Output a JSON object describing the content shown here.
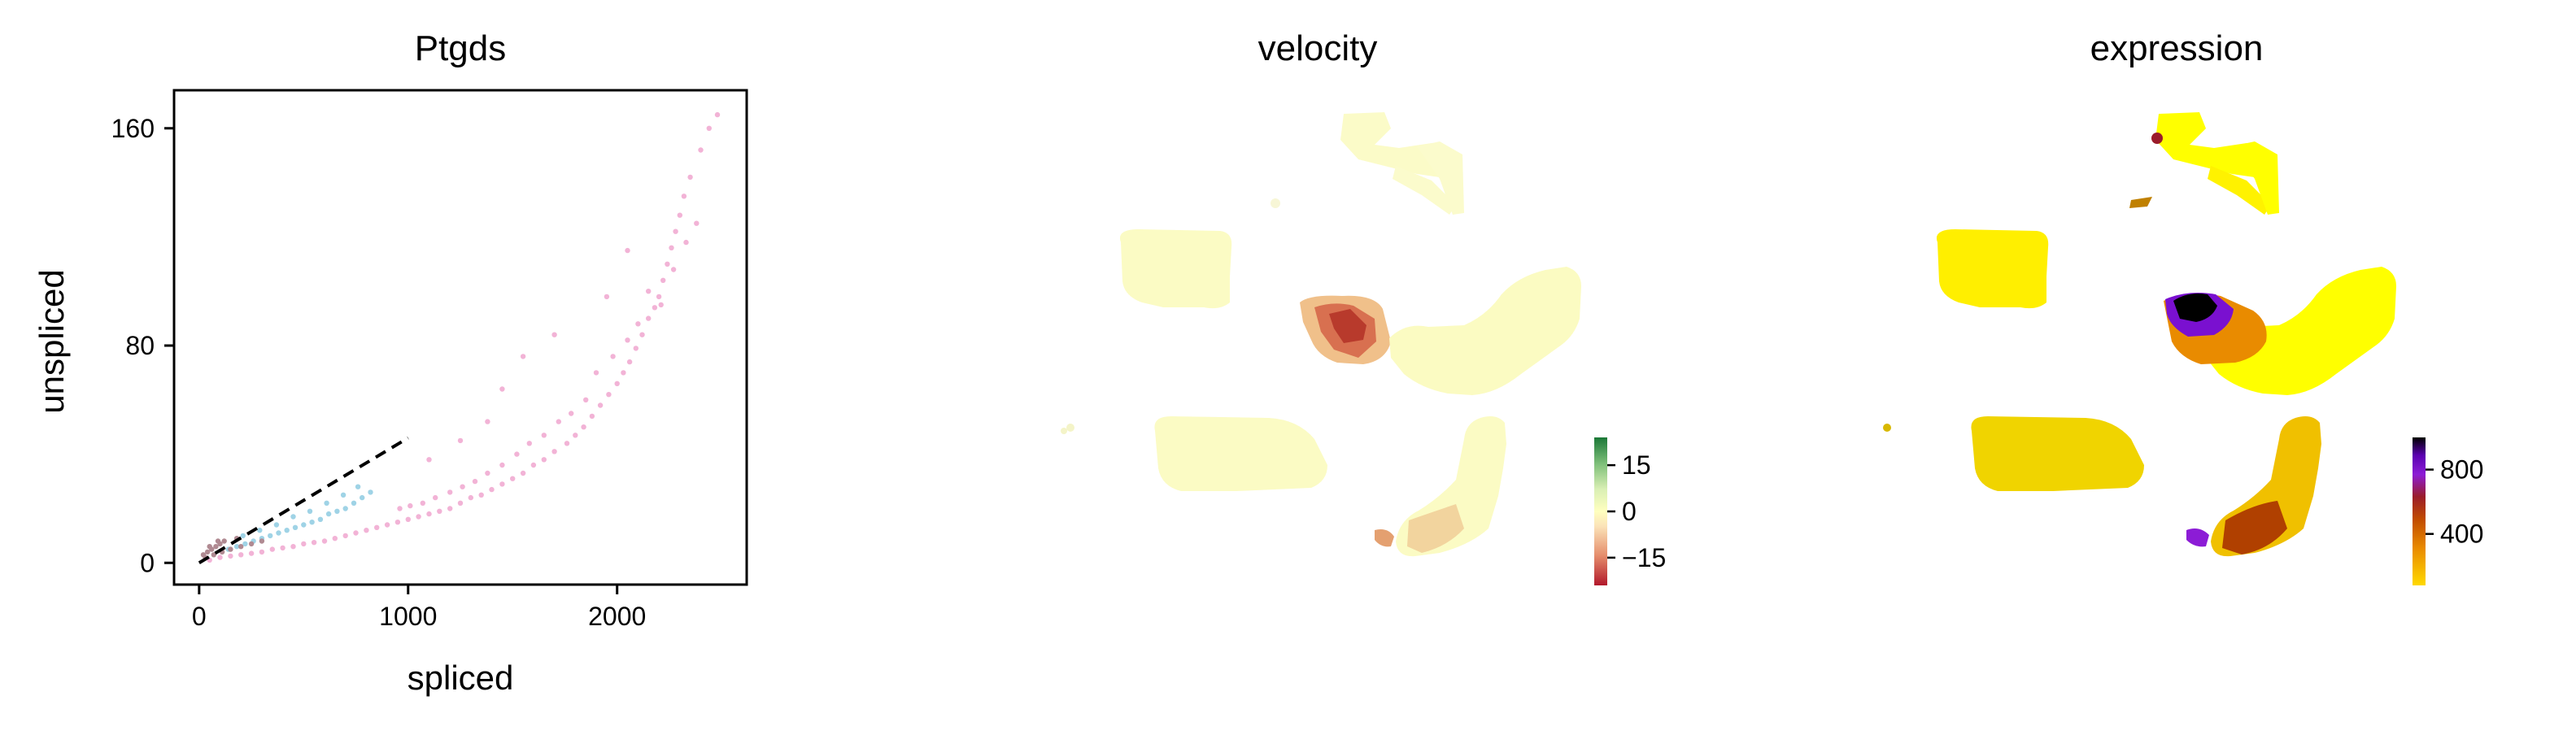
{
  "chart_data": [
    {
      "type": "scatter",
      "title": "Ptgds",
      "xlabel": "spliced",
      "ylabel": "unspliced",
      "xlim": [
        -120,
        2620
      ],
      "ylim": [
        -8,
        174
      ],
      "xticks": [
        "0",
        "1000",
        "2000"
      ],
      "yticks": [
        "0",
        "80",
        "160"
      ],
      "xtick_values": [
        0,
        1000,
        2000
      ],
      "ytick_values": [
        0,
        80,
        160
      ],
      "grid": false,
      "legend": "none",
      "point_colors": [
        "#f2b3d6",
        "#9fd3e6",
        "#b08a92",
        "#c8c8c8"
      ],
      "series": [
        {
          "values_note": "",
          "points": [
            [
              2480,
              165
            ],
            [
              2440,
              160
            ],
            [
              2400,
              152
            ],
            [
              2350,
              142
            ],
            [
              2320,
              135
            ],
            [
              2300,
              128
            ],
            [
              2280,
              122
            ],
            [
              2260,
              116
            ],
            [
              2240,
              110
            ],
            [
              2220,
              104
            ],
            [
              2200,
              98
            ],
            [
              2180,
              94
            ],
            [
              2150,
              90
            ],
            [
              2120,
              84
            ],
            [
              2090,
              79
            ],
            [
              2060,
              74
            ],
            [
              2030,
              70
            ],
            [
              2000,
              66
            ],
            [
              1960,
              62
            ],
            [
              1920,
              58
            ],
            [
              1880,
              54
            ],
            [
              1840,
              50
            ],
            [
              1800,
              47
            ],
            [
              1760,
              44
            ],
            [
              1700,
              41
            ],
            [
              1650,
              38
            ],
            [
              1600,
              36
            ],
            [
              1550,
              33
            ],
            [
              1500,
              31
            ],
            [
              1450,
              29
            ],
            [
              1400,
              27
            ],
            [
              1350,
              25
            ],
            [
              1300,
              24
            ],
            [
              1250,
              22
            ],
            [
              1200,
              20
            ],
            [
              1150,
              19
            ],
            [
              1100,
              18
            ],
            [
              1050,
              17
            ],
            [
              1000,
              16
            ],
            [
              950,
              15
            ],
            [
              900,
              14
            ],
            [
              850,
              13
            ],
            [
              800,
              12
            ],
            [
              750,
              11
            ],
            [
              700,
              10
            ],
            [
              650,
              9
            ],
            [
              600,
              8
            ],
            [
              550,
              7.5
            ],
            [
              500,
              7
            ],
            [
              450,
              6
            ],
            [
              400,
              5.5
            ],
            [
              350,
              5
            ],
            [
              300,
              4
            ],
            [
              250,
              3.5
            ],
            [
              200,
              3
            ],
            [
              150,
              2.5
            ],
            [
              100,
              2
            ],
            [
              50,
              1
            ],
            [
              2380,
              125
            ],
            [
              2330,
              118
            ],
            [
              2270,
              108
            ],
            [
              2210,
              95
            ],
            [
              2150,
              100
            ],
            [
              2100,
              88
            ],
            [
              2050,
              82
            ],
            [
              1980,
              76
            ],
            [
              1900,
              70
            ],
            [
              1850,
              60
            ],
            [
              1780,
              55
            ],
            [
              1720,
              52
            ],
            [
              1650,
              47
            ],
            [
              1580,
              44
            ],
            [
              1520,
              40
            ],
            [
              1450,
              36
            ],
            [
              1380,
              33
            ],
            [
              1320,
              30
            ],
            [
              1260,
              28
            ],
            [
              1200,
              26
            ],
            [
              1130,
              24
            ],
            [
              1070,
              22
            ],
            [
              1010,
              21
            ],
            [
              960,
              20
            ],
            [
              1700,
              84
            ],
            [
              1550,
              76
            ],
            [
              1450,
              64
            ],
            [
              1380,
              52
            ],
            [
              1250,
              45
            ],
            [
              1100,
              38
            ],
            [
              2050,
              115
            ],
            [
              1950,
              98
            ]
          ]
        },
        {
          "points": [
            [
              820,
              26
            ],
            [
              780,
              24
            ],
            [
              740,
              22
            ],
            [
              700,
              20
            ],
            [
              660,
              19
            ],
            [
              620,
              18
            ],
            [
              580,
              16
            ],
            [
              540,
              15
            ],
            [
              500,
              14
            ],
            [
              460,
              13
            ],
            [
              420,
              12
            ],
            [
              380,
              11
            ],
            [
              340,
              10
            ],
            [
              300,
              9
            ],
            [
              260,
              8
            ],
            [
              220,
              7
            ],
            [
              180,
              6
            ],
            [
              140,
              5
            ],
            [
              760,
              28
            ],
            [
              690,
              25
            ],
            [
              610,
              22
            ],
            [
              530,
              19
            ],
            [
              450,
              17
            ],
            [
              370,
              14
            ],
            [
              290,
              12
            ],
            [
              210,
              10
            ]
          ]
        },
        {
          "points": [
            [
              40,
              4
            ],
            [
              60,
              5
            ],
            [
              80,
              6
            ],
            [
              100,
              7
            ],
            [
              120,
              8
            ],
            [
              30,
              2
            ],
            [
              70,
              3
            ],
            [
              110,
              4
            ],
            [
              150,
              5
            ],
            [
              200,
              6
            ],
            [
              250,
              7
            ],
            [
              300,
              8
            ],
            [
              180,
              9
            ],
            [
              90,
              8
            ],
            [
              20,
              3
            ],
            [
              50,
              6
            ]
          ]
        }
      ],
      "trendline": {
        "style": "dashed",
        "color": "#000000",
        "from": [
          0,
          0
        ],
        "to": [
          1000,
          46
        ]
      }
    },
    {
      "type": "scatter",
      "title": "velocity",
      "embedding": "umap",
      "colorbar": {
        "ticks": [
          "15",
          "0",
          "−15"
        ],
        "tick_values": [
          15,
          0,
          -15
        ],
        "range": [
          -24,
          24
        ],
        "colors": [
          "#b2182b",
          "#e58c6b",
          "#fbe3b8",
          "#ffffbf",
          "#d9efb4",
          "#7fc07a",
          "#1a7837"
        ]
      }
    },
    {
      "type": "scatter",
      "title": "expression",
      "embedding": "umap",
      "colorbar": {
        "ticks": [
          "800",
          "400"
        ],
        "tick_values": [
          800,
          400
        ],
        "range": [
          80,
          1000
        ],
        "colors": [
          "#ffd900",
          "#e98b00",
          "#c04a00",
          "#9a1c2a",
          "#8c1cd6",
          "#5a00b0",
          "#000000"
        ]
      }
    }
  ]
}
